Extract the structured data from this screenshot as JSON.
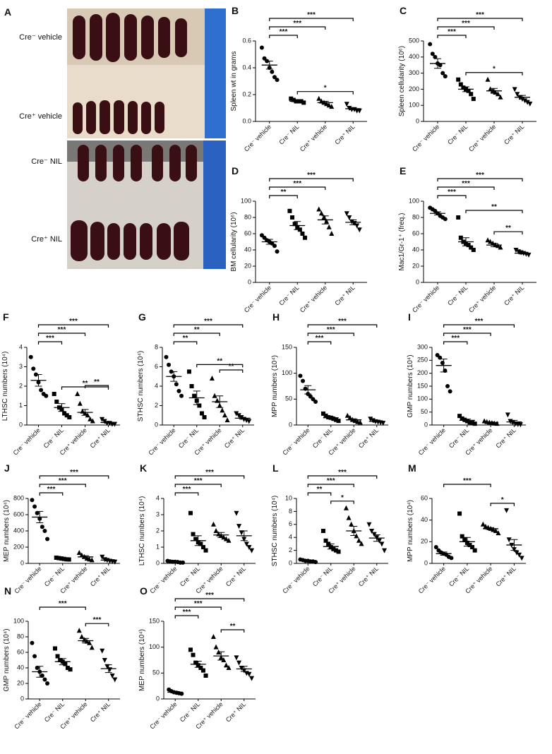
{
  "photo": {
    "panel": "A",
    "labels": [
      "Cre⁻ vehicle",
      "Cre⁺ vehicle",
      "Cre⁻ NIL",
      "Cre⁺ NIL"
    ]
  },
  "group_markers": [
    "circle",
    "square",
    "triangle",
    "triangle-down"
  ],
  "chart_data": [
    {
      "type": "dot",
      "panel": "B",
      "ylabel": "Spleen wt in grams",
      "categories": [
        "Cre⁻ vehicle",
        "Cre⁻ NIL",
        "Cre⁺ vehicle",
        "Cre⁺ NIL"
      ],
      "ylim": [
        0,
        0.6
      ],
      "yticks": [
        {
          "value": 0,
          "label": "0.0"
        },
        {
          "value": 0.2,
          "label": "0.2"
        },
        {
          "value": 0.4,
          "label": "0.4"
        },
        {
          "value": 0.6,
          "label": "0.6"
        }
      ],
      "points": [
        [
          0.55,
          0.47,
          0.45,
          0.4,
          0.37,
          0.33,
          0.31
        ],
        [
          0.17,
          0.16,
          0.15,
          0.15,
          0.15,
          0.14
        ],
        [
          0.17,
          0.15,
          0.14,
          0.13,
          0.12,
          0.11
        ],
        [
          0.13,
          0.1,
          0.09,
          0.09,
          0.08,
          0.08
        ]
      ],
      "means": [
        0.42,
        0.15,
        0.14,
        0.095
      ],
      "errors": [
        0.03,
        0.005,
        0.01,
        0.008
      ],
      "comparisons": [
        {
          "from": 0,
          "to": 1,
          "label": "***"
        },
        {
          "from": 0,
          "to": 2,
          "label": "***"
        },
        {
          "from": 0,
          "to": 3,
          "label": "***"
        },
        {
          "from": 1,
          "to": 3,
          "label": "*"
        }
      ]
    },
    {
      "type": "dot",
      "panel": "C",
      "ylabel": "Spleen cellularity (10⁶)",
      "categories": [
        "Cre⁻ vehicle",
        "Cre⁻ NIL",
        "Cre⁺ vehicle",
        "Cre⁺ NIL"
      ],
      "ylim": [
        0,
        500
      ],
      "yticks": [
        0,
        100,
        200,
        300,
        400,
        500
      ],
      "points": [
        [
          480,
          420,
          400,
          360,
          350,
          300,
          280
        ],
        [
          260,
          230,
          210,
          200,
          190,
          170,
          140
        ],
        [
          260,
          200,
          190,
          180,
          170,
          150
        ],
        [
          200,
          170,
          150,
          140,
          130,
          120,
          110
        ]
      ],
      "means": [
        360,
        200,
        190,
        150
      ],
      "errors": [
        30,
        15,
        15,
        12
      ],
      "comparisons": [
        {
          "from": 0,
          "to": 1,
          "label": "***"
        },
        {
          "from": 0,
          "to": 2,
          "label": "***"
        },
        {
          "from": 0,
          "to": 3,
          "label": "***"
        },
        {
          "from": 1,
          "to": 3,
          "label": "*"
        }
      ]
    },
    {
      "type": "dot",
      "panel": "D",
      "ylabel": "BM cellularity (10⁶)",
      "categories": [
        "Cre⁻ vehicle",
        "Cre⁻ NIL",
        "Cre⁺ vehicle",
        "Cre⁺ NIL"
      ],
      "ylim": [
        0,
        100
      ],
      "yticks": [
        0,
        20,
        40,
        60,
        80,
        100
      ],
      "points": [
        [
          58,
          55,
          52,
          50,
          48,
          45,
          38
        ],
        [
          88,
          80,
          72,
          68,
          65,
          60,
          55
        ],
        [
          90,
          85,
          80,
          75,
          68,
          60
        ],
        [
          85,
          80,
          75,
          73,
          70,
          65
        ]
      ],
      "means": [
        50,
        70,
        77,
        74
      ],
      "errors": [
        3,
        5,
        5,
        3
      ],
      "comparisons": [
        {
          "from": 0,
          "to": 1,
          "label": "**"
        },
        {
          "from": 0,
          "to": 2,
          "label": "***"
        },
        {
          "from": 0,
          "to": 3,
          "label": "***"
        }
      ]
    },
    {
      "type": "dot",
      "panel": "E",
      "ylabel": "Mac1/Gr-1⁺ (freq.)",
      "categories": [
        "Cre⁻ vehicle",
        "Cre⁻ NIL",
        "Cre⁺ vehicle",
        "Cre⁺ NIL"
      ],
      "ylim": [
        0,
        100
      ],
      "yticks": [
        0,
        20,
        40,
        60,
        80,
        100
      ],
      "points": [
        [
          92,
          90,
          88,
          85,
          82,
          80,
          78
        ],
        [
          80,
          55,
          50,
          48,
          46,
          43,
          40
        ],
        [
          52,
          50,
          48,
          46,
          45,
          43
        ],
        [
          40,
          38,
          37,
          36,
          35,
          34
        ]
      ],
      "means": [
        85,
        50,
        46,
        36
      ],
      "errors": [
        2,
        5,
        2,
        1
      ],
      "comparisons": [
        {
          "from": 0,
          "to": 1,
          "label": "***"
        },
        {
          "from": 0,
          "to": 2,
          "label": "***"
        },
        {
          "from": 0,
          "to": 3,
          "label": "***"
        },
        {
          "from": 1,
          "to": 3,
          "label": "**"
        },
        {
          "from": 2,
          "to": 3,
          "label": "**"
        }
      ]
    },
    {
      "type": "dot",
      "panel": "F",
      "ylabel": "LTHSC numbers (10⁴)",
      "categories": [
        "Cre⁻ vehicle",
        "Cre⁻ NIL",
        "Cre⁺ vehicle",
        "Cre⁺ NIL"
      ],
      "ylim": [
        0,
        4
      ],
      "yticks": [
        0,
        1,
        2,
        3,
        4
      ],
      "points": [
        [
          3.5,
          2.9,
          2.6,
          2.2,
          1.8,
          1.6,
          1.5
        ],
        [
          1.6,
          1.2,
          0.9,
          0.8,
          0.6,
          0.5,
          0.4
        ],
        [
          1.6,
          1.1,
          0.7,
          0.6,
          0.5,
          0.3,
          0.2
        ],
        [
          0.3,
          0.2,
          0.1,
          0.1,
          0.05,
          0.05
        ]
      ],
      "means": [
        2.3,
        0.9,
        0.65,
        0.13
      ],
      "errors": [
        0.3,
        0.2,
        0.15,
        0.04
      ],
      "comparisons": [
        {
          "from": 0,
          "to": 1,
          "label": "***"
        },
        {
          "from": 0,
          "to": 2,
          "label": "***"
        },
        {
          "from": 0,
          "to": 3,
          "label": "***"
        },
        {
          "from": 1,
          "to": 3,
          "label": "**"
        },
        {
          "from": 2,
          "to": 3,
          "label": "**"
        }
      ]
    },
    {
      "type": "dot",
      "panel": "G",
      "ylabel": "STHSC numbers (10⁴)",
      "categories": [
        "Cre⁻ vehicle",
        "Cre⁻ NIL",
        "Cre⁺ vehicle",
        "Cre⁺ NIL"
      ],
      "ylim": [
        0,
        8
      ],
      "yticks": [
        0,
        2,
        4,
        6,
        8
      ],
      "points": [
        [
          7,
          6.2,
          5.5,
          5,
          4.2,
          3.5,
          3
        ],
        [
          5.5,
          4,
          3,
          2.5,
          2,
          1.2,
          0.8
        ],
        [
          4.8,
          3,
          2.5,
          2,
          1.5,
          1,
          0.5
        ],
        [
          1.2,
          1,
          0.8,
          0.6,
          0.5,
          0.4
        ]
      ],
      "means": [
        5,
        2.8,
        2.4,
        0.7
      ],
      "errors": [
        0.5,
        0.7,
        0.6,
        0.1
      ],
      "comparisons": [
        {
          "from": 0,
          "to": 1,
          "label": "**"
        },
        {
          "from": 0,
          "to": 2,
          "label": "**"
        },
        {
          "from": 0,
          "to": 3,
          "label": "***"
        },
        {
          "from": 1,
          "to": 3,
          "label": "**"
        },
        {
          "from": 2,
          "to": 3,
          "label": "**"
        }
      ]
    },
    {
      "type": "dot",
      "panel": "H",
      "ylabel": "MPP numbers (10⁴)",
      "categories": [
        "Cre⁻ vehicle",
        "Cre⁻ NIL",
        "Cre⁺ vehicle",
        "Cre⁺ NIL"
      ],
      "ylim": [
        0,
        150
      ],
      "yticks": [
        0,
        50,
        100,
        150
      ],
      "points": [
        [
          95,
          85,
          70,
          60,
          55,
          50,
          45
        ],
        [
          22,
          18,
          15,
          14,
          12,
          10,
          8
        ],
        [
          18,
          14,
          10,
          8,
          6,
          5
        ],
        [
          12,
          9,
          7,
          6,
          5,
          4
        ]
      ],
      "means": [
        68,
        14,
        10,
        7
      ],
      "errors": [
        8,
        2,
        2,
        1.5
      ],
      "comparisons": [
        {
          "from": 0,
          "to": 1,
          "label": "***"
        },
        {
          "from": 0,
          "to": 2,
          "label": "***"
        },
        {
          "from": 0,
          "to": 3,
          "label": "***"
        }
      ]
    },
    {
      "type": "dot",
      "panel": "I",
      "ylabel": "GMP numbers (10⁴)",
      "categories": [
        "Cre⁻ vehicle",
        "Cre⁻ NIL",
        "Cre⁺ vehicle",
        "Cre⁺ NIL"
      ],
      "ylim": [
        0,
        300
      ],
      "yticks": [
        0,
        50,
        100,
        150,
        200,
        250,
        300
      ],
      "points": [
        [
          270,
          260,
          240,
          210,
          150,
          130
        ],
        [
          35,
          25,
          20,
          15,
          10,
          8,
          5
        ],
        [
          15,
          12,
          10,
          8,
          6,
          5
        ],
        [
          40,
          15,
          10,
          5,
          3,
          2
        ]
      ],
      "means": [
        230,
        18,
        10,
        12
      ],
      "errors": [
        25,
        5,
        2,
        6
      ],
      "comparisons": [
        {
          "from": 0,
          "to": 1,
          "label": "***"
        },
        {
          "from": 0,
          "to": 2,
          "label": "***"
        },
        {
          "from": 0,
          "to": 3,
          "label": "***"
        }
      ]
    },
    {
      "type": "dot",
      "panel": "J",
      "ylabel": "MEP numbers (10⁴)",
      "categories": [
        "Cre⁻ vehicle",
        "Cre⁻ NIL",
        "Cre⁺ vehicle",
        "Cre⁺ NIL"
      ],
      "ylim": [
        0,
        800
      ],
      "yticks": [
        0,
        200,
        400,
        600,
        800
      ],
      "points": [
        [
          780,
          700,
          620,
          550,
          450,
          400,
          300
        ],
        [
          70,
          65,
          60,
          55,
          50,
          48
        ],
        [
          130,
          100,
          80,
          60,
          50,
          40
        ],
        [
          80,
          50,
          40,
          30,
          25,
          20
        ]
      ],
      "means": [
        570,
        58,
        80,
        40
      ],
      "errors": [
        70,
        4,
        15,
        10
      ],
      "comparisons": [
        {
          "from": 0,
          "to": 1,
          "label": "***"
        },
        {
          "from": 0,
          "to": 2,
          "label": "***"
        },
        {
          "from": 0,
          "to": 3,
          "label": "***"
        }
      ]
    },
    {
      "type": "dot",
      "panel": "K",
      "ylabel": "LTHSC numbers (10⁴)",
      "categories": [
        "Cre⁻ vehicle",
        "Cre⁻ NIL",
        "Cre⁺ vehicle",
        "Cre⁺ NIL"
      ],
      "ylim": [
        0,
        4
      ],
      "yticks": [
        0,
        1,
        2,
        3,
        4
      ],
      "points": [
        [
          0.15,
          0.12,
          0.1,
          0.1,
          0.08,
          0.05,
          0.05
        ],
        [
          3.1,
          1.8,
          1.5,
          1.3,
          1.2,
          1.0,
          0.8
        ],
        [
          2.4,
          2,
          1.8,
          1.7,
          1.6,
          1.5,
          1.4
        ],
        [
          3.1,
          2.3,
          1.9,
          1.5,
          1.2,
          1.0,
          0.8
        ]
      ],
      "means": [
        0.1,
        1.4,
        1.75,
        1.7
      ],
      "errors": [
        0.02,
        0.3,
        0.15,
        0.3
      ],
      "comparisons": [
        {
          "from": 0,
          "to": 1,
          "label": "***"
        },
        {
          "from": 0,
          "to": 2,
          "label": "***"
        },
        {
          "from": 0,
          "to": 3,
          "label": "***"
        }
      ]
    },
    {
      "type": "dot",
      "panel": "L",
      "ylabel": "STHSC numbers (10⁴)",
      "categories": [
        "Cre⁻ vehicle",
        "Cre⁻ NIL",
        "Cre⁺ vehicle",
        "Cre⁺ NIL"
      ],
      "ylim": [
        0,
        10
      ],
      "yticks": [
        0,
        2,
        4,
        6,
        8,
        10
      ],
      "points": [
        [
          0.6,
          0.5,
          0.4,
          0.4,
          0.3,
          0.3,
          0.2
        ],
        [
          5,
          3.5,
          3,
          2.5,
          2.2,
          2,
          1.8
        ],
        [
          8.5,
          7,
          6,
          5,
          4.2,
          3.5,
          3
        ],
        [
          6,
          5,
          4.5,
          4,
          3.5,
          3,
          2
        ]
      ],
      "means": [
        0.4,
        2.6,
        5,
        3.9
      ],
      "errors": [
        0.05,
        0.4,
        0.7,
        0.5
      ],
      "comparisons": [
        {
          "from": 0,
          "to": 1,
          "label": "**"
        },
        {
          "from": 0,
          "to": 2,
          "label": "***"
        },
        {
          "from": 0,
          "to": 3,
          "label": "***"
        },
        {
          "from": 1,
          "to": 2,
          "label": "*"
        }
      ]
    },
    {
      "type": "dot",
      "panel": "M",
      "ylabel": "MPP numbers (10⁴)",
      "categories": [
        "Cre⁻ vehicle",
        "Cre⁻ NIL",
        "Cre⁺ vehicle",
        "Cre⁺ NIL"
      ],
      "ylim": [
        0,
        60
      ],
      "yticks": [
        0,
        20,
        40,
        60
      ],
      "points": [
        [
          15,
          12,
          10,
          9,
          8,
          6,
          5
        ],
        [
          46,
          25,
          22,
          19,
          17,
          15,
          12
        ],
        [
          36,
          34,
          33,
          32,
          31,
          30,
          28
        ],
        [
          49,
          22,
          17,
          13,
          10,
          8,
          5
        ]
      ],
      "means": [
        9,
        20,
        32,
        17
      ],
      "errors": [
        1.5,
        4,
        1,
        5
      ],
      "comparisons": [
        {
          "from": 0,
          "to": 2,
          "label": "***"
        },
        {
          "from": 2,
          "to": 3,
          "label": "*"
        }
      ]
    },
    {
      "type": "dot",
      "panel": "N",
      "ylabel": "GMP numbers (10⁴)",
      "categories": [
        "Cre⁻ vehicle",
        "Cre⁻ NIL",
        "Cre⁺ vehicle",
        "Cre⁺ NIL"
      ],
      "ylim": [
        0,
        100
      ],
      "yticks": [
        0,
        20,
        40,
        60,
        80,
        100
      ],
      "points": [
        [
          72,
          55,
          40,
          35,
          30,
          25,
          20
        ],
        [
          65,
          55,
          50,
          48,
          45,
          40,
          38
        ],
        [
          88,
          80,
          76,
          74,
          72,
          66
        ],
        [
          62,
          50,
          42,
          38,
          30,
          25
        ]
      ],
      "means": [
        35,
        48,
        75,
        39
      ],
      "errors": [
        7,
        4,
        3,
        5
      ],
      "comparisons": [
        {
          "from": 0,
          "to": 2,
          "label": "***"
        },
        {
          "from": 2,
          "to": 3,
          "label": "***"
        }
      ]
    },
    {
      "type": "dot",
      "panel": "O",
      "ylabel": "MEP numbers (10⁴)",
      "categories": [
        "Cre⁻ vehicle",
        "Cre⁻ NIL",
        "Cre⁺ vehicle",
        "Cre⁺ NIL"
      ],
      "ylim": [
        0,
        150
      ],
      "yticks": [
        0,
        50,
        100,
        150
      ],
      "points": [
        [
          18,
          15,
          13,
          12,
          11,
          10
        ],
        [
          95,
          85,
          70,
          65,
          60,
          55,
          45
        ],
        [
          120,
          100,
          90,
          80,
          75,
          65,
          60
        ],
        [
          80,
          70,
          60,
          55,
          50,
          48,
          40
        ]
      ],
      "means": [
        13,
        67,
        83,
        58
      ],
      "errors": [
        1.5,
        6,
        8,
        5
      ],
      "comparisons": [
        {
          "from": 0,
          "to": 1,
          "label": "***"
        },
        {
          "from": 0,
          "to": 2,
          "label": "***"
        },
        {
          "from": 0,
          "to": 3,
          "label": "***"
        },
        {
          "from": 2,
          "to": 3,
          "label": "**"
        }
      ]
    }
  ]
}
